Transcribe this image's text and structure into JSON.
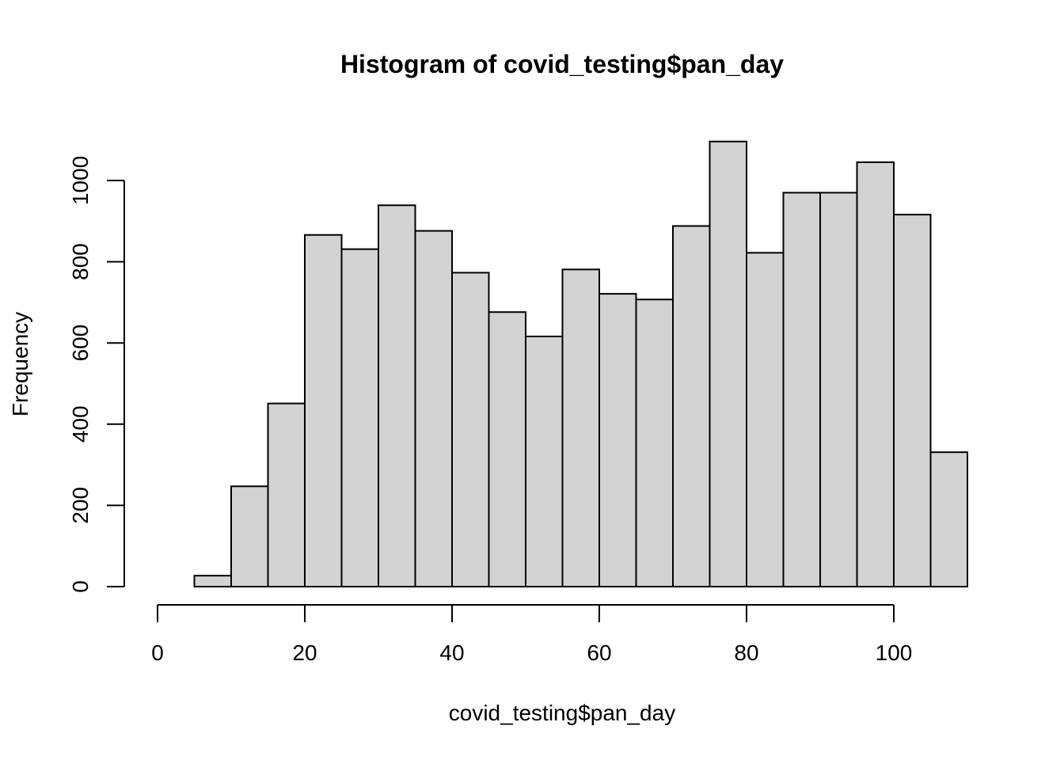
{
  "chart_data": {
    "type": "bar",
    "title": "Histogram of covid_testing$pan_day",
    "xlabel": "covid_testing$pan_day",
    "ylabel": "Frequency",
    "xlim": [
      0,
      110
    ],
    "ylim": [
      0,
      1100
    ],
    "bin_width": 5,
    "bins": [
      {
        "start": 0,
        "end": 5,
        "count": 0
      },
      {
        "start": 5,
        "end": 10,
        "count": 27
      },
      {
        "start": 10,
        "end": 15,
        "count": 247
      },
      {
        "start": 15,
        "end": 20,
        "count": 451
      },
      {
        "start": 20,
        "end": 25,
        "count": 866
      },
      {
        "start": 25,
        "end": 30,
        "count": 831
      },
      {
        "start": 30,
        "end": 35,
        "count": 939
      },
      {
        "start": 35,
        "end": 40,
        "count": 876
      },
      {
        "start": 40,
        "end": 45,
        "count": 773
      },
      {
        "start": 45,
        "end": 50,
        "count": 676
      },
      {
        "start": 50,
        "end": 55,
        "count": 616
      },
      {
        "start": 55,
        "end": 60,
        "count": 781
      },
      {
        "start": 60,
        "end": 65,
        "count": 721
      },
      {
        "start": 65,
        "end": 70,
        "count": 707
      },
      {
        "start": 70,
        "end": 75,
        "count": 888
      },
      {
        "start": 75,
        "end": 80,
        "count": 1096
      },
      {
        "start": 80,
        "end": 85,
        "count": 822
      },
      {
        "start": 85,
        "end": 90,
        "count": 970
      },
      {
        "start": 90,
        "end": 95,
        "count": 970
      },
      {
        "start": 95,
        "end": 100,
        "count": 1045
      },
      {
        "start": 100,
        "end": 105,
        "count": 916
      },
      {
        "start": 105,
        "end": 110,
        "count": 331
      }
    ],
    "x_ticks": [
      0,
      20,
      40,
      60,
      80,
      100
    ],
    "y_ticks": [
      0,
      200,
      400,
      600,
      800,
      1000
    ],
    "grid": false,
    "colors": {
      "bar_fill": "#d3d3d3",
      "bar_stroke": "#000000"
    }
  }
}
